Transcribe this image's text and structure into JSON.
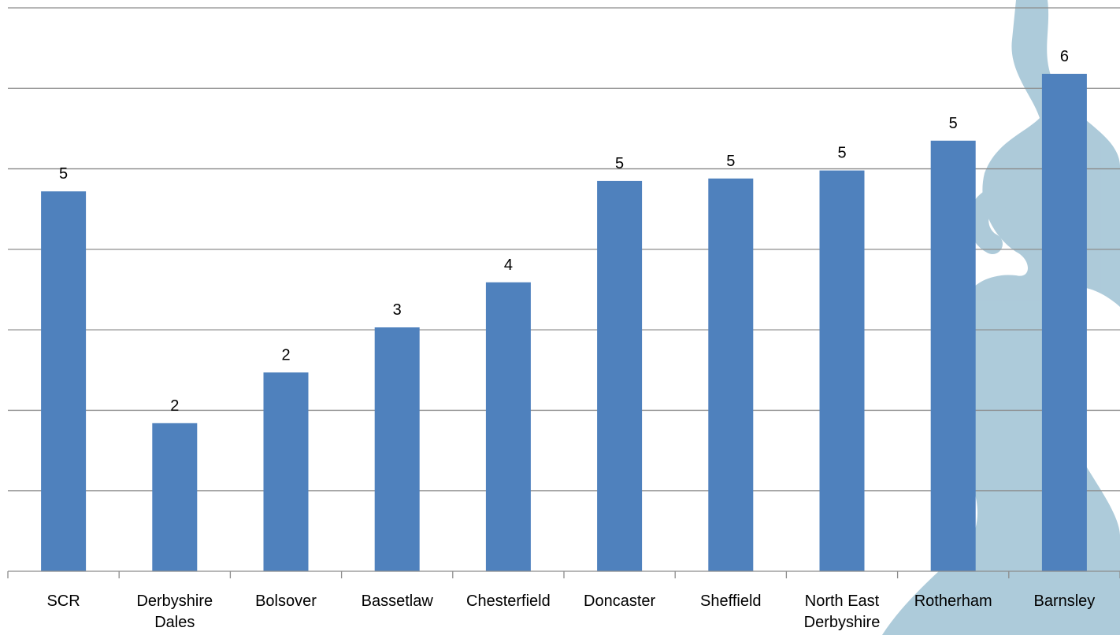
{
  "chart_data": {
    "type": "bar",
    "title": "",
    "xlabel": "",
    "ylabel": "",
    "categories": [
      [
        "SCR"
      ],
      [
        "Derbyshire",
        "Dales"
      ],
      [
        "Bolsover"
      ],
      [
        "Bassetlaw"
      ],
      [
        "Chesterfield"
      ],
      [
        "Doncaster"
      ],
      [
        "Sheffield"
      ],
      [
        "North East",
        "Derbyshire"
      ],
      [
        "Rotherham"
      ],
      [
        "Barnsley"
      ]
    ],
    "values": [
      4.72,
      1.84,
      2.47,
      3.03,
      3.59,
      4.85,
      4.88,
      4.98,
      5.35,
      6.18
    ],
    "data_labels": [
      "5",
      "2",
      "2",
      "3",
      "4",
      "5",
      "5",
      "5",
      "5",
      "6"
    ],
    "ylim": [
      0,
      7
    ],
    "gridlines": [
      1,
      2,
      3,
      4,
      5,
      6,
      7
    ],
    "grid": true,
    "legend": "none",
    "colors": {
      "bar": "#4f81bd",
      "grid": "#8c8c8c",
      "axis": "#8c8c8c",
      "watermark": "#a9c8d8"
    },
    "watermark_icon": "decorative-swirl-watermark"
  }
}
